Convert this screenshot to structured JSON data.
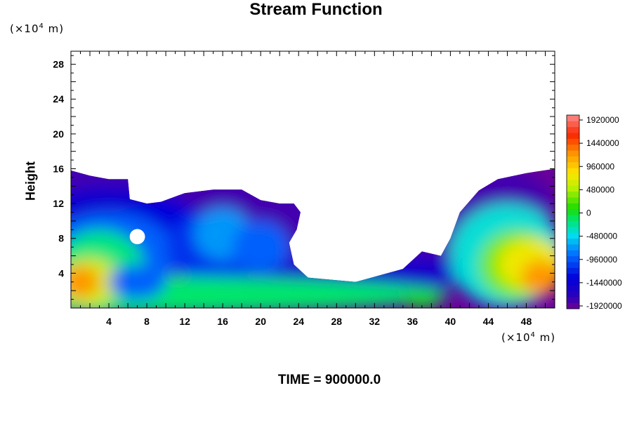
{
  "chart_data": {
    "type": "heatmap",
    "title": "Stream Function",
    "ylabel": "Height",
    "y_unit_prefix": "(×10",
    "y_unit_exp": "4",
    "y_unit_suffix": " m)",
    "x_unit_prefix": "(×10",
    "x_unit_exp": "4",
    "x_unit_suffix": " m)",
    "xlim": [
      0,
      51
    ],
    "ylim": [
      0,
      29.5
    ],
    "xticks": [
      4,
      8,
      12,
      16,
      20,
      24,
      28,
      32,
      36,
      40,
      44,
      48
    ],
    "yticks": [
      4,
      8,
      12,
      16,
      20,
      24,
      28
    ],
    "colorbar": {
      "min": -1920000,
      "max": 1920000,
      "labels": [
        1920000,
        1440000,
        960000,
        480000,
        0,
        -480000,
        -960000,
        -1440000,
        -1920000
      ],
      "levels": 33
    },
    "field_boundary_top": [
      [
        0,
        15.8
      ],
      [
        2,
        15.2
      ],
      [
        4,
        14.8
      ],
      [
        6,
        14.8
      ],
      [
        6.2,
        12.5
      ],
      [
        8,
        12
      ],
      [
        9.5,
        12.2
      ],
      [
        12,
        13.2
      ],
      [
        15,
        13.6
      ],
      [
        18,
        13.6
      ],
      [
        20,
        12.4
      ],
      [
        22,
        12
      ],
      [
        23.5,
        12
      ],
      [
        24.2,
        11
      ],
      [
        23.8,
        9
      ],
      [
        23,
        7.5
      ],
      [
        23.5,
        5
      ],
      [
        25,
        3.5
      ],
      [
        30,
        3
      ],
      [
        35,
        4.5
      ],
      [
        37,
        6.5
      ],
      [
        39,
        6
      ],
      [
        40,
        8
      ],
      [
        41,
        11
      ],
      [
        43,
        13.5
      ],
      [
        45,
        14.8
      ],
      [
        48,
        15.5
      ],
      [
        51,
        16
      ]
    ],
    "hole": [
      7,
      8.2
    ],
    "footer_prefix": "TIME = ",
    "time": "900000.0"
  }
}
